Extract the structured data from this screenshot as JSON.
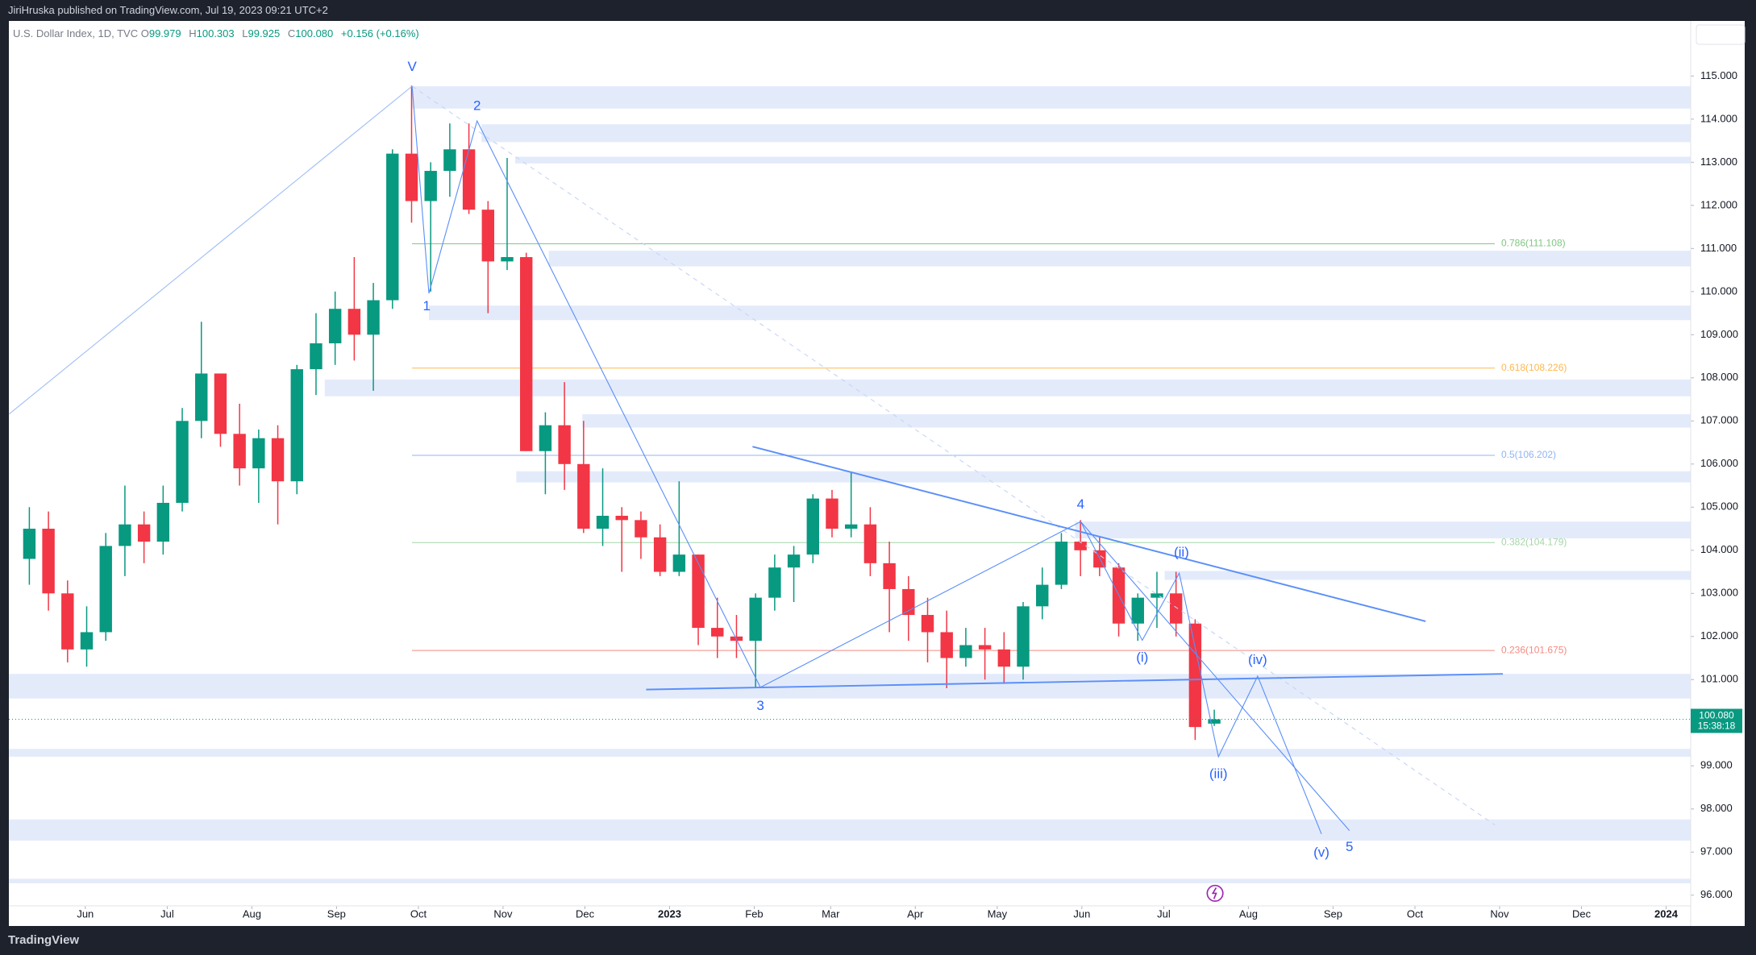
{
  "chart_data": {
    "type": "candlestick",
    "title": "U.S. Dollar Index, 1D, TVC",
    "subtitle": "JiriHruska published on TradingView.com, Jul 19, 2023 09:21 UTC+2",
    "brand": "TradingView",
    "legend": {
      "o_label": "O",
      "o": "99.979",
      "h_label": "H",
      "h": "100.303",
      "l_label": "L",
      "l": "99.925",
      "c_label": "C",
      "c": "100.080",
      "change": "+0.156 (+0.16%)"
    },
    "up_color": "#089981",
    "down_color": "#f23645",
    "ylim": [
      95.79,
      116.24
    ],
    "xlim": [
      "2022-05-04",
      "2024-01-10"
    ],
    "yticks": [
      {
        "value": 96,
        "label": "96.000"
      },
      {
        "value": 97,
        "label": "97.000"
      },
      {
        "value": 98,
        "label": "98.000"
      },
      {
        "value": 99,
        "label": "99.000"
      },
      {
        "value": 100,
        "label": "100.000"
      },
      {
        "value": 101,
        "label": "101.000"
      },
      {
        "value": 102,
        "label": "102.000"
      },
      {
        "value": 103,
        "label": "103.000"
      },
      {
        "value": 104,
        "label": "104.000"
      },
      {
        "value": 105,
        "label": "105.000"
      },
      {
        "value": 106,
        "label": "106.000"
      },
      {
        "value": 107,
        "label": "107.000"
      },
      {
        "value": 108,
        "label": "108.000"
      },
      {
        "value": 109,
        "label": "109.000"
      },
      {
        "value": 110,
        "label": "110.000"
      },
      {
        "value": 111,
        "label": "111.000"
      },
      {
        "value": 112,
        "label": "112.000"
      },
      {
        "value": 113,
        "label": "113.000"
      },
      {
        "value": 114,
        "label": "114.000"
      },
      {
        "value": 115,
        "label": "115.000"
      }
    ],
    "xticks": [
      {
        "value": "2022-06-01",
        "label": "Jun"
      },
      {
        "value": "2022-07-01",
        "label": "Jul"
      },
      {
        "value": "2022-08-01",
        "label": "Aug"
      },
      {
        "value": "2022-09-01",
        "label": "Sep"
      },
      {
        "value": "2022-10-01",
        "label": "Oct"
      },
      {
        "value": "2022-11-01",
        "label": "Nov"
      },
      {
        "value": "2022-12-01",
        "label": "Dec"
      },
      {
        "value": "2023-01-01",
        "label": "2023"
      },
      {
        "value": "2023-02-01",
        "label": "Feb"
      },
      {
        "value": "2023-03-01",
        "label": "Mar"
      },
      {
        "value": "2023-04-01",
        "label": "Apr"
      },
      {
        "value": "2023-05-01",
        "label": "May"
      },
      {
        "value": "2023-06-01",
        "label": "Jun"
      },
      {
        "value": "2023-07-01",
        "label": "Jul"
      },
      {
        "value": "2023-08-01",
        "label": "Aug"
      },
      {
        "value": "2023-09-01",
        "label": "Sep"
      },
      {
        "value": "2023-10-01",
        "label": "Oct"
      },
      {
        "value": "2023-11-01",
        "label": "Nov"
      },
      {
        "value": "2023-12-01",
        "label": "Dec"
      },
      {
        "value": "2024-01-01",
        "label": "2024"
      }
    ],
    "candles": {
      "x": [
        "2022-05-09",
        "2022-05-16",
        "2022-05-23",
        "2022-05-30",
        "2022-06-06",
        "2022-06-13",
        "2022-06-20",
        "2022-06-27",
        "2022-07-04",
        "2022-07-11",
        "2022-07-18",
        "2022-07-25",
        "2022-08-01",
        "2022-08-08",
        "2022-08-15",
        "2022-08-22",
        "2022-08-29",
        "2022-09-05",
        "2022-09-12",
        "2022-09-19",
        "2022-09-26",
        "2022-10-03",
        "2022-10-10",
        "2022-10-17",
        "2022-10-24",
        "2022-10-31",
        "2022-11-07",
        "2022-11-14",
        "2022-11-21",
        "2022-11-28",
        "2022-12-05",
        "2022-12-12",
        "2022-12-19",
        "2022-12-26",
        "2023-01-02",
        "2023-01-09",
        "2023-01-16",
        "2023-01-23",
        "2023-01-30",
        "2023-02-06",
        "2023-02-13",
        "2023-02-20",
        "2023-02-27",
        "2023-03-06",
        "2023-03-13",
        "2023-03-20",
        "2023-03-27",
        "2023-04-03",
        "2023-04-10",
        "2023-04-17",
        "2023-04-24",
        "2023-05-01",
        "2023-05-08",
        "2023-05-15",
        "2023-05-22",
        "2023-05-29",
        "2023-06-05",
        "2023-06-12",
        "2023-06-19",
        "2023-06-26",
        "2023-07-03",
        "2023-07-10",
        "2023-07-17"
      ],
      "open": [
        103.8,
        104.5,
        103.0,
        101.7,
        102.1,
        104.1,
        104.6,
        104.2,
        105.1,
        107.0,
        108.1,
        106.7,
        105.9,
        106.6,
        105.6,
        108.2,
        108.8,
        109.6,
        109.0,
        109.8,
        113.2,
        112.1,
        112.8,
        113.3,
        111.9,
        110.7,
        110.8,
        106.3,
        106.9,
        106.0,
        104.5,
        104.8,
        104.7,
        104.3,
        103.5,
        103.9,
        102.2,
        102.0,
        101.9,
        102.9,
        103.6,
        103.9,
        105.2,
        104.5,
        104.6,
        103.7,
        103.1,
        102.5,
        102.1,
        101.5,
        101.8,
        101.7,
        101.3,
        102.7,
        103.2,
        104.2,
        104.0,
        103.6,
        102.3,
        102.9,
        103.0,
        102.3,
        99.979
      ],
      "high": [
        105.0,
        104.9,
        103.3,
        102.7,
        104.4,
        105.5,
        104.9,
        105.5,
        107.3,
        109.3,
        108.1,
        107.4,
        106.8,
        106.9,
        108.3,
        109.5,
        110.0,
        110.8,
        110.2,
        113.3,
        114.78,
        113.0,
        113.9,
        113.9,
        112.1,
        113.1,
        110.9,
        107.2,
        107.9,
        107.0,
        105.9,
        105.0,
        104.9,
        104.6,
        105.6,
        103.9,
        102.9,
        102.5,
        103.0,
        103.9,
        104.1,
        105.3,
        105.4,
        105.8,
        105.0,
        104.2,
        103.4,
        102.9,
        102.6,
        102.2,
        102.2,
        102.1,
        102.8,
        103.6,
        104.4,
        104.7,
        104.3,
        103.7,
        103.0,
        103.5,
        103.5,
        102.4,
        100.303
      ],
      "low": [
        103.2,
        102.6,
        101.4,
        101.3,
        101.9,
        103.4,
        103.7,
        103.9,
        104.9,
        106.6,
        106.4,
        105.5,
        105.1,
        104.6,
        105.3,
        107.6,
        108.3,
        108.4,
        107.7,
        109.6,
        111.6,
        110.0,
        112.2,
        111.8,
        109.5,
        110.5,
        106.3,
        105.3,
        105.4,
        104.4,
        104.1,
        103.5,
        103.8,
        103.4,
        103.4,
        101.8,
        101.5,
        101.5,
        100.8,
        102.6,
        102.8,
        103.7,
        104.3,
        104.3,
        103.4,
        102.1,
        101.9,
        101.4,
        100.8,
        101.3,
        101.0,
        100.9,
        101.0,
        102.4,
        103.1,
        103.4,
        103.4,
        102.0,
        101.9,
        102.2,
        102.0,
        99.6,
        99.925
      ],
      "close": [
        104.5,
        103.0,
        101.7,
        102.1,
        104.1,
        104.6,
        104.2,
        105.1,
        107.0,
        108.1,
        106.7,
        105.9,
        106.6,
        105.6,
        108.2,
        108.8,
        109.6,
        109.0,
        109.8,
        113.2,
        112.1,
        112.8,
        113.3,
        111.9,
        110.7,
        110.8,
        106.3,
        106.9,
        106.0,
        104.5,
        104.8,
        104.7,
        104.3,
        103.5,
        103.9,
        102.2,
        102.0,
        101.9,
        102.9,
        103.6,
        103.9,
        105.2,
        104.5,
        104.6,
        103.7,
        103.1,
        102.5,
        102.1,
        101.5,
        101.8,
        101.7,
        101.3,
        102.7,
        103.2,
        104.2,
        104.0,
        103.6,
        102.3,
        102.9,
        103.0,
        102.3,
        99.9,
        100.08
      ]
    },
    "last_price": {
      "value": 100.08,
      "label": "100.080",
      "color": "#089981"
    },
    "countdown": "15:38:18",
    "fib_levels": [
      {
        "value": 111.108,
        "label": "0.786(111.108)",
        "color": "#81c784"
      },
      {
        "value": 108.226,
        "label": "0.618(108.226)",
        "color": "#ffb74d"
      },
      {
        "value": 106.202,
        "label": "0.5(106.202)",
        "color": "#90b4f5"
      },
      {
        "value": 104.179,
        "label": "0.382(104.179)",
        "color": "#a5d6a7"
      },
      {
        "value": 101.675,
        "label": "0.236(101.675)",
        "color": "#f28b82"
      }
    ],
    "wave_labels": [
      "V",
      "1",
      "2",
      "3",
      "4",
      "5",
      "(i)",
      "(ii)",
      "(iii)",
      "(iv)",
      "(v)"
    ]
  }
}
